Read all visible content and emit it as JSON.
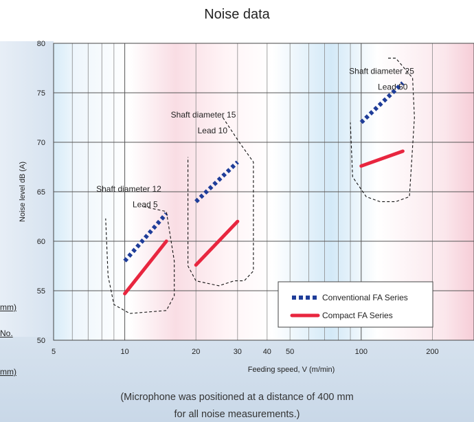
{
  "page": {
    "title": "Noise data",
    "side_labels": [
      "mm)",
      "No.",
      "mm)"
    ],
    "footnote": [
      "(Microphone was positioned at a distance of 400 mm",
      "for all noise measurements.)"
    ]
  },
  "chart_data": {
    "type": "line",
    "title": "Noise data",
    "xlabel": "Feeding speed, V (m/min)",
    "ylabel": "Noise level dB (A)",
    "xscale": "log",
    "xlim": [
      5,
      300
    ],
    "ylim": [
      50,
      80
    ],
    "x_ticks": [
      5,
      10,
      20,
      30,
      40,
      50,
      100,
      200
    ],
    "x_tick_labels": [
      "5",
      "10",
      "20",
      "30",
      "40",
      "50",
      "100",
      "200"
    ],
    "y_ticks": [
      50,
      55,
      60,
      65,
      70,
      75,
      80
    ],
    "y_tick_labels": [
      "50",
      "55",
      "60",
      "65",
      "70",
      "75",
      "80"
    ],
    "grid": true,
    "legend_position": "bottom-right",
    "colors": {
      "conventional": "#1f3d99",
      "compact": "#e8263f"
    },
    "series": [
      {
        "name": "Conventional FA Series",
        "style": "dotted",
        "color": "#1f3d99",
        "segments": [
          {
            "group": 0,
            "points": [
              [
                10,
                58
              ],
              [
                15,
                62.8
              ]
            ]
          },
          {
            "group": 1,
            "points": [
              [
                20,
                64
              ],
              [
                30,
                68
              ]
            ]
          },
          {
            "group": 2,
            "points": [
              [
                100,
                72
              ],
              [
                150,
                76
              ]
            ]
          }
        ]
      },
      {
        "name": "Compact FA Series",
        "style": "solid",
        "color": "#e8263f",
        "segments": [
          {
            "group": 0,
            "points": [
              [
                10,
                54.7
              ],
              [
                15,
                60
              ]
            ]
          },
          {
            "group": 1,
            "points": [
              [
                20,
                57.6
              ],
              [
                30,
                62
              ]
            ]
          },
          {
            "group": 2,
            "points": [
              [
                100,
                67.6
              ],
              [
                150,
                69.1
              ]
            ]
          }
        ]
      }
    ],
    "annotations": [
      {
        "lines": [
          "Shaft diameter 12",
          "Lead 5"
        ]
      },
      {
        "lines": [
          "Shaft diameter 15",
          "Lead 10"
        ]
      },
      {
        "lines": [
          "Shaft diameter 25",
          "Lead 50"
        ]
      }
    ]
  }
}
